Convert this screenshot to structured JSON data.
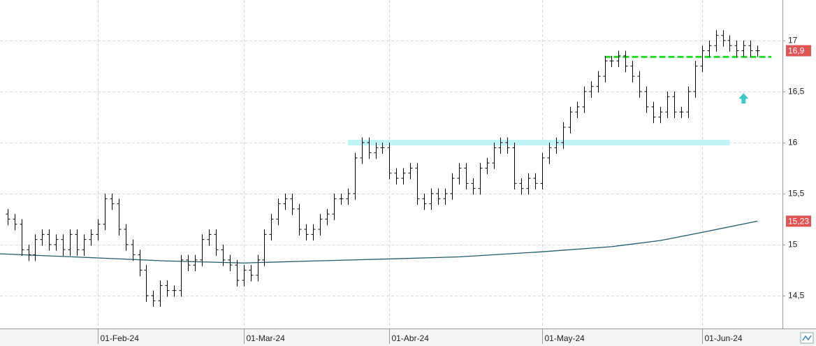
{
  "chart_data": {
    "type": "ohlc",
    "x": [
      "2024-01-15",
      "2024-01-16",
      "2024-01-17",
      "2024-01-18",
      "2024-01-19",
      "2024-01-22",
      "2024-01-23",
      "2024-01-24",
      "2024-01-25",
      "2024-01-26",
      "2024-01-29",
      "2024-01-30",
      "2024-01-31",
      "2024-02-01",
      "2024-02-02",
      "2024-02-05",
      "2024-02-06",
      "2024-02-07",
      "2024-02-08",
      "2024-02-09",
      "2024-02-12",
      "2024-02-13",
      "2024-02-14",
      "2024-02-15",
      "2024-02-16",
      "2024-02-19",
      "2024-02-20",
      "2024-02-21",
      "2024-02-22",
      "2024-02-23",
      "2024-02-26",
      "2024-02-27",
      "2024-02-28",
      "2024-02-29",
      "2024-03-01",
      "2024-03-04",
      "2024-03-05",
      "2024-03-06",
      "2024-03-07",
      "2024-03-08",
      "2024-03-11",
      "2024-03-12",
      "2024-03-13",
      "2024-03-14",
      "2024-03-15",
      "2024-03-18",
      "2024-03-19",
      "2024-03-20",
      "2024-03-21",
      "2024-03-22",
      "2024-03-25",
      "2024-03-26",
      "2024-03-27",
      "2024-03-28",
      "2024-03-29",
      "2024-04-01",
      "2024-04-02",
      "2024-04-03",
      "2024-04-04",
      "2024-04-05",
      "2024-04-08",
      "2024-04-09",
      "2024-04-10",
      "2024-04-11",
      "2024-04-12",
      "2024-04-15",
      "2024-04-16",
      "2024-04-17",
      "2024-04-18",
      "2024-04-19",
      "2024-04-22",
      "2024-04-23",
      "2024-04-24",
      "2024-04-25",
      "2024-04-26",
      "2024-04-29",
      "2024-04-30",
      "2024-05-01",
      "2024-05-02",
      "2024-05-03",
      "2024-05-06",
      "2024-05-07",
      "2024-05-08",
      "2024-05-09",
      "2024-05-10",
      "2024-05-13",
      "2024-05-14",
      "2024-05-15",
      "2024-05-16",
      "2024-05-17",
      "2024-05-20",
      "2024-05-21",
      "2024-05-22",
      "2024-05-23",
      "2024-05-24",
      "2024-05-27",
      "2024-05-28",
      "2024-05-29",
      "2024-05-30",
      "2024-05-31",
      "2024-06-03",
      "2024-06-04",
      "2024-06-05",
      "2024-06-06",
      "2024-06-07",
      "2024-06-10",
      "2024-06-11",
      "2024-06-12",
      "2024-06-13"
    ],
    "open": [
      15.3,
      15.25,
      15.2,
      14.95,
      14.9,
      15.05,
      15.1,
      15.0,
      15.05,
      14.95,
      15.1,
      14.95,
      15.05,
      15.1,
      15.2,
      15.45,
      15.4,
      15.15,
      15.0,
      14.9,
      14.75,
      14.5,
      14.45,
      14.6,
      14.55,
      14.55,
      14.85,
      14.8,
      14.85,
      15.05,
      15.1,
      14.95,
      14.85,
      14.8,
      14.65,
      14.75,
      14.7,
      14.85,
      15.1,
      15.25,
      15.4,
      15.45,
      15.35,
      15.15,
      15.1,
      15.15,
      15.25,
      15.3,
      15.45,
      15.45,
      15.5,
      15.85,
      16.0,
      15.9,
      15.95,
      15.95,
      15.7,
      15.65,
      15.7,
      15.75,
      15.45,
      15.4,
      15.5,
      15.45,
      15.5,
      15.65,
      15.75,
      15.6,
      15.55,
      15.75,
      15.8,
      15.95,
      16.0,
      15.95,
      15.6,
      15.55,
      15.65,
      15.6,
      15.85,
      15.95,
      16.0,
      16.15,
      16.3,
      16.35,
      16.5,
      16.55,
      16.65,
      16.8,
      16.8,
      16.85,
      16.75,
      16.65,
      16.5,
      16.35,
      16.25,
      16.3,
      16.45,
      16.3,
      16.3,
      16.5,
      16.75,
      16.9,
      16.95,
      17.05,
      17.0,
      16.95,
      16.9,
      16.95,
      16.9
    ],
    "high": [
      15.35,
      15.3,
      15.25,
      15.0,
      15.1,
      15.15,
      15.15,
      15.1,
      15.1,
      15.15,
      15.15,
      15.1,
      15.15,
      15.25,
      15.5,
      15.5,
      15.45,
      15.2,
      15.05,
      14.95,
      14.8,
      14.55,
      14.65,
      14.65,
      14.6,
      14.9,
      14.9,
      14.9,
      15.1,
      15.15,
      15.15,
      15.0,
      14.9,
      14.85,
      14.8,
      14.8,
      14.9,
      15.15,
      15.3,
      15.45,
      15.5,
      15.5,
      15.4,
      15.2,
      15.2,
      15.3,
      15.35,
      15.5,
      15.5,
      15.55,
      15.9,
      16.05,
      16.05,
      16.0,
      16.0,
      16.0,
      15.75,
      15.75,
      15.8,
      15.8,
      15.5,
      15.55,
      15.55,
      15.55,
      15.7,
      15.8,
      15.8,
      15.65,
      15.8,
      15.85,
      16.0,
      16.05,
      16.05,
      16.0,
      15.65,
      15.7,
      15.7,
      15.9,
      16.0,
      16.05,
      16.2,
      16.35,
      16.4,
      16.55,
      16.6,
      16.7,
      16.85,
      16.85,
      16.9,
      16.9,
      16.8,
      16.7,
      16.55,
      16.4,
      16.35,
      16.5,
      16.5,
      16.35,
      16.55,
      16.8,
      16.95,
      17.0,
      17.1,
      17.1,
      17.05,
      17.0,
      17.0,
      17.0,
      16.95
    ],
    "low": [
      15.19,
      15.14,
      14.89,
      14.84,
      14.84,
      14.99,
      14.94,
      14.94,
      14.89,
      14.89,
      14.89,
      14.89,
      14.99,
      15.04,
      15.14,
      15.34,
      15.09,
      14.94,
      14.84,
      14.69,
      14.44,
      14.39,
      14.39,
      14.49,
      14.49,
      14.49,
      14.74,
      14.74,
      14.79,
      14.99,
      14.89,
      14.79,
      14.74,
      14.59,
      14.59,
      14.64,
      14.64,
      14.79,
      15.04,
      15.19,
      15.34,
      15.29,
      15.09,
      15.04,
      15.04,
      15.09,
      15.19,
      15.24,
      15.39,
      15.39,
      15.44,
      15.79,
      15.84,
      15.84,
      15.89,
      15.64,
      15.59,
      15.59,
      15.64,
      15.39,
      15.34,
      15.34,
      15.39,
      15.39,
      15.44,
      15.59,
      15.54,
      15.49,
      15.49,
      15.69,
      15.74,
      15.89,
      15.89,
      15.54,
      15.49,
      15.49,
      15.54,
      15.54,
      15.79,
      15.89,
      15.94,
      16.09,
      16.24,
      16.29,
      16.44,
      16.49,
      16.59,
      16.74,
      16.74,
      16.69,
      16.59,
      16.44,
      16.29,
      16.19,
      16.19,
      16.24,
      16.24,
      16.24,
      16.24,
      16.44,
      16.69,
      16.84,
      16.89,
      16.94,
      16.89,
      16.84,
      16.84,
      16.84,
      16.84
    ],
    "close": [
      15.25,
      15.2,
      14.95,
      14.9,
      15.05,
      15.1,
      15.0,
      15.05,
      14.95,
      15.1,
      14.95,
      15.05,
      15.1,
      15.2,
      15.45,
      15.4,
      15.15,
      15.0,
      14.9,
      14.75,
      14.5,
      14.45,
      14.6,
      14.55,
      14.55,
      14.85,
      14.8,
      14.85,
      15.05,
      15.1,
      14.95,
      14.85,
      14.8,
      14.65,
      14.75,
      14.7,
      14.85,
      15.1,
      15.25,
      15.4,
      15.45,
      15.35,
      15.15,
      15.1,
      15.15,
      15.25,
      15.3,
      15.45,
      15.45,
      15.5,
      15.85,
      16.0,
      15.9,
      15.95,
      15.95,
      15.7,
      15.65,
      15.7,
      15.75,
      15.45,
      15.4,
      15.5,
      15.45,
      15.5,
      15.65,
      15.75,
      15.6,
      15.55,
      15.75,
      15.8,
      15.95,
      16.0,
      15.95,
      15.6,
      15.55,
      15.65,
      15.6,
      15.85,
      15.95,
      16.0,
      16.15,
      16.3,
      16.35,
      16.5,
      16.55,
      16.65,
      16.8,
      16.8,
      16.85,
      16.75,
      16.65,
      16.5,
      16.35,
      16.25,
      16.3,
      16.45,
      16.3,
      16.3,
      16.5,
      16.75,
      16.9,
      16.95,
      17.05,
      17.0,
      16.95,
      16.9,
      16.95,
      16.9,
      16.9
    ],
    "color": "#000000",
    "moving_average": {
      "color": "#1f5a6e",
      "x": [
        "2024-01-15",
        "2024-02-01",
        "2024-02-15",
        "2024-03-01",
        "2024-03-15",
        "2024-04-01",
        "2024-04-15",
        "2024-05-01",
        "2024-05-15",
        "2024-05-24",
        "2024-06-03",
        "2024-06-13"
      ],
      "values": [
        14.91,
        14.87,
        14.84,
        14.82,
        14.84,
        14.86,
        14.88,
        14.93,
        14.98,
        15.04,
        15.12,
        15.23
      ]
    },
    "levels": [
      {
        "value": 16.84,
        "from": "2024-05-14",
        "to": "2024-06-13",
        "color": "#22dd22",
        "style": "dashed"
      },
      {
        "value": 16.0,
        "from": "2024-03-22",
        "to": "2024-06-07",
        "color": "#bff3f5",
        "style": "band"
      }
    ],
    "arrow": {
      "x": "2024-06-11",
      "value": 16.43,
      "color": "#3cc8c8",
      "direction": "up"
    },
    "price_labels": [
      {
        "value": 16.9,
        "label": "16,9",
        "color": "#e05454"
      },
      {
        "value": 15.23,
        "label": "15,23",
        "color": "#e05454"
      }
    ],
    "ylim": [
      14.178,
      17.397
    ],
    "yticks": [
      {
        "value": 14.5,
        "label": "14,5"
      },
      15,
      {
        "value": 15.5,
        "label": "15,5"
      },
      16,
      {
        "value": 16.5,
        "label": "16,5"
      },
      17
    ],
    "xticks": [
      {
        "value": "2024-02-01",
        "label": "01-Feb-24"
      },
      {
        "value": "2024-03-01",
        "label": "01-Mar-24"
      },
      {
        "value": "2024-04-01",
        "label": "01-Abr-24"
      },
      {
        "value": "2024-05-01",
        "label": "01-May-24"
      },
      {
        "value": "2024-06-03",
        "label": "01-Jun-24"
      }
    ],
    "grid": true
  }
}
